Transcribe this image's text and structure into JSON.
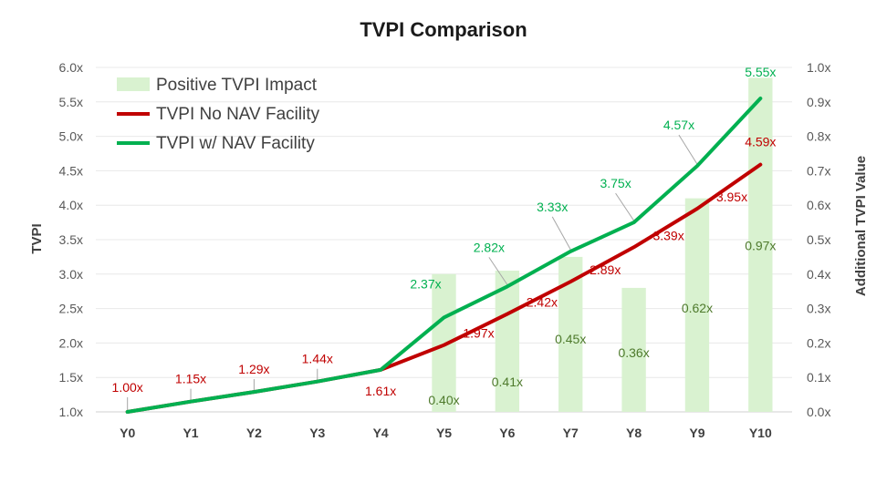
{
  "chart_data": {
    "type": "bar-line-combo",
    "title": "TVPI Comparison",
    "categories": [
      "Y0",
      "Y1",
      "Y2",
      "Y3",
      "Y4",
      "Y5",
      "Y6",
      "Y7",
      "Y8",
      "Y9",
      "Y10"
    ],
    "y_left": {
      "label": "TVPI",
      "range": [
        1.0,
        6.0
      ],
      "ticks": [
        "1.0x",
        "1.5x",
        "2.0x",
        "2.5x",
        "3.0x",
        "3.5x",
        "4.0x",
        "4.5x",
        "5.0x",
        "5.5x",
        "6.0x"
      ]
    },
    "y_right": {
      "label": "Additional TVPI Value",
      "range": [
        0.0,
        1.0
      ],
      "ticks": [
        "0.0x",
        "0.1x",
        "0.2x",
        "0.3x",
        "0.4x",
        "0.5x",
        "0.6x",
        "0.7x",
        "0.8x",
        "0.9x",
        "1.0x"
      ]
    },
    "grid": true,
    "legend_position": "top-left",
    "series": [
      {
        "name": "Positive TVPI Impact",
        "kind": "bar",
        "axis": "right",
        "color": "#d9f2d0",
        "values": [
          null,
          null,
          null,
          null,
          null,
          0.4,
          0.41,
          0.45,
          0.36,
          0.62,
          0.97
        ],
        "labels": [
          "",
          "",
          "",
          "",
          "",
          "0.40x",
          "0.41x",
          "0.45x",
          "0.36x",
          "0.62x",
          "0.97x"
        ],
        "label_color": "#4e7a2c"
      },
      {
        "name": "TVPI No NAV Facility",
        "kind": "line",
        "axis": "left",
        "color": "#c00000",
        "values": [
          1.0,
          1.15,
          1.29,
          1.44,
          1.61,
          1.97,
          2.42,
          2.89,
          3.39,
          3.95,
          4.59
        ],
        "labels": [
          "1.00x",
          "1.15x",
          "1.29x",
          "1.44x",
          "1.61x",
          "1.97x",
          "2.42x",
          "2.89x",
          "3.39x",
          "3.95x",
          "4.59x"
        ],
        "label_color": "#c00000"
      },
      {
        "name": "TVPI w/ NAV Facility",
        "kind": "line",
        "axis": "left",
        "color": "#00b050",
        "values": [
          1.0,
          1.15,
          1.29,
          1.44,
          1.61,
          2.37,
          2.82,
          3.33,
          3.75,
          4.57,
          5.55
        ],
        "labels": [
          "",
          "",
          "",
          "",
          "",
          "2.37x",
          "2.82x",
          "3.33x",
          "3.75x",
          "4.57x",
          "5.55x"
        ],
        "label_color": "#00b050"
      }
    ]
  }
}
